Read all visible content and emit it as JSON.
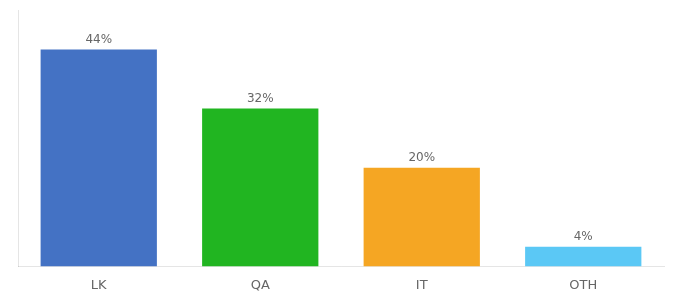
{
  "chart_data": {
    "type": "bar",
    "categories": [
      "LK",
      "QA",
      "IT",
      "OTH"
    ],
    "values": [
      44,
      32,
      20,
      4
    ],
    "value_labels": [
      "44%",
      "32%",
      "20%",
      "4%"
    ],
    "colors": [
      "#4472c4",
      "#21b521",
      "#f5a623",
      "#5bc8f5"
    ],
    "ylim": [
      0,
      52
    ],
    "grid": false,
    "data_labels": true,
    "tick_labels": "x"
  }
}
